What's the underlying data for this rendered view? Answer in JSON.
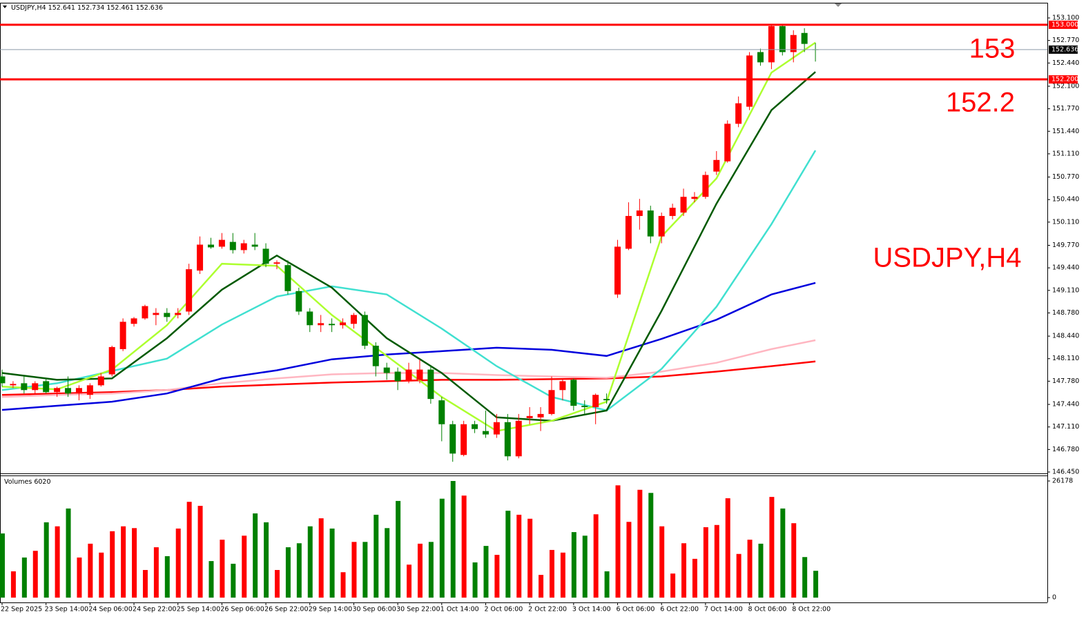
{
  "chart_data": [
    {
      "type": "candlestick",
      "title": "USDJPY,H4",
      "up_color": "#ff0000",
      "down_color": "#008000",
      "categories": [
        "22 Sep 2025",
        null,
        null,
        null,
        "23 Sep 14:00",
        null,
        null,
        null,
        "24 Sep 06:00",
        null,
        null,
        null,
        "24 Sep 22:00",
        null,
        null,
        null,
        "25 Sep 14:00",
        null,
        null,
        null,
        "26 Sep 06:00",
        null,
        null,
        null,
        "26 Sep 22:00",
        null,
        null,
        null,
        "29 Sep 14:00",
        null,
        null,
        null,
        "30 Sep 06:00",
        null,
        null,
        null,
        "30 Sep 22:00",
        null,
        null,
        null,
        "1 Oct 14:00",
        null,
        null,
        null,
        "2 Oct 06:00",
        null,
        null,
        null,
        "2 Oct 22:00",
        null,
        null,
        null,
        "3 Oct 14:00",
        null,
        null,
        null,
        "6 Oct 06:00",
        null,
        null,
        null,
        "6 Oct 22:00",
        null,
        null,
        null,
        "7 Oct 14:00",
        null,
        null,
        null,
        "8 Oct 06:00",
        null,
        null,
        null,
        "8 Oct 22:00",
        null,
        null
      ],
      "ohlc": [
        [
          147.85,
          147.95,
          147.7,
          147.75
        ],
        [
          147.72,
          147.78,
          147.68,
          147.74
        ],
        [
          147.75,
          147.85,
          147.6,
          147.65
        ],
        [
          147.65,
          147.78,
          147.6,
          147.75
        ],
        [
          147.78,
          147.82,
          147.6,
          147.62
        ],
        [
          147.62,
          147.7,
          147.55,
          147.68
        ],
        [
          147.68,
          147.85,
          147.55,
          147.6
        ],
        [
          147.6,
          147.72,
          147.5,
          147.68
        ],
        [
          147.58,
          147.75,
          147.52,
          147.72
        ],
        [
          147.72,
          147.9,
          147.7,
          147.85
        ],
        [
          147.88,
          148.3,
          147.85,
          148.28
        ],
        [
          148.25,
          148.7,
          148.22,
          148.65
        ],
        [
          148.62,
          148.72,
          148.58,
          148.7
        ],
        [
          148.7,
          148.9,
          148.68,
          148.88
        ],
        [
          148.75,
          148.85,
          148.6,
          148.78
        ],
        [
          148.78,
          148.85,
          148.65,
          148.72
        ],
        [
          148.75,
          148.85,
          148.7,
          148.78
        ],
        [
          148.8,
          149.5,
          148.75,
          149.42
        ],
        [
          149.4,
          149.9,
          149.35,
          149.78
        ],
        [
          149.78,
          149.88,
          149.72,
          149.74
        ],
        [
          149.75,
          149.95,
          149.72,
          149.85
        ],
        [
          149.82,
          149.95,
          149.65,
          149.7
        ],
        [
          149.7,
          149.85,
          149.65,
          149.8
        ],
        [
          149.78,
          149.95,
          149.7,
          149.75
        ],
        [
          149.72,
          149.8,
          149.45,
          149.5
        ],
        [
          149.5,
          149.55,
          149.42,
          149.52
        ],
        [
          149.48,
          149.55,
          149.05,
          149.1
        ],
        [
          149.1,
          149.15,
          148.75,
          148.8
        ],
        [
          148.8,
          148.85,
          148.5,
          148.6
        ],
        [
          148.6,
          148.75,
          148.5,
          148.63
        ],
        [
          148.62,
          148.7,
          148.5,
          148.6
        ],
        [
          148.6,
          148.7,
          148.55,
          148.64
        ],
        [
          148.62,
          148.78,
          148.55,
          148.75
        ],
        [
          148.75,
          148.8,
          148.25,
          148.3
        ],
        [
          148.3,
          148.35,
          147.85,
          148.0
        ],
        [
          147.98,
          148.05,
          147.8,
          147.9
        ],
        [
          147.92,
          147.98,
          147.65,
          147.78
        ],
        [
          147.78,
          148.05,
          147.75,
          147.95
        ],
        [
          147.8,
          148.1,
          147.75,
          147.95
        ],
        [
          147.95,
          148.0,
          147.45,
          147.52
        ],
        [
          147.5,
          147.55,
          146.9,
          147.15
        ],
        [
          147.15,
          147.2,
          146.6,
          146.72
        ],
        [
          146.7,
          147.2,
          146.68,
          147.15
        ],
        [
          147.15,
          147.2,
          147.02,
          147.08
        ],
        [
          147.05,
          147.35,
          146.95,
          147.0
        ],
        [
          147.0,
          147.3,
          146.95,
          147.18
        ],
        [
          147.18,
          147.3,
          146.62,
          146.68
        ],
        [
          146.68,
          147.3,
          146.65,
          147.2
        ],
        [
          147.24,
          147.4,
          147.15,
          147.27
        ],
        [
          147.25,
          147.4,
          147.05,
          147.3
        ],
        [
          147.3,
          147.85,
          147.28,
          147.65
        ],
        [
          147.65,
          147.82,
          147.5,
          147.78
        ],
        [
          147.8,
          147.82,
          147.35,
          147.42
        ],
        [
          147.42,
          147.5,
          147.3,
          147.4
        ],
        [
          147.4,
          147.6,
          147.15,
          147.58
        ],
        [
          147.52,
          147.6,
          147.45,
          147.5
        ],
        [
          149.05,
          149.85,
          149.0,
          149.75
        ],
        [
          149.72,
          150.4,
          149.7,
          150.2
        ],
        [
          150.2,
          150.45,
          150.0,
          150.28
        ],
        [
          150.28,
          150.35,
          149.8,
          149.9
        ],
        [
          149.9,
          150.25,
          149.8,
          150.2
        ],
        [
          150.2,
          150.38,
          150.15,
          150.32
        ],
        [
          150.25,
          150.6,
          150.2,
          150.48
        ],
        [
          150.45,
          150.55,
          150.4,
          150.48
        ],
        [
          150.48,
          150.85,
          150.45,
          150.8
        ],
        [
          150.85,
          151.15,
          150.8,
          151.02
        ],
        [
          151.0,
          151.6,
          150.98,
          151.55
        ],
        [
          151.55,
          151.95,
          151.5,
          151.85
        ],
        [
          151.8,
          152.6,
          151.75,
          152.55
        ],
        [
          152.6,
          152.65,
          152.4,
          152.45
        ],
        [
          152.45,
          153.0,
          152.35,
          152.98
        ],
        [
          152.98,
          153.0,
          152.55,
          152.6
        ],
        [
          152.6,
          152.92,
          152.45,
          152.85
        ],
        [
          152.88,
          152.95,
          152.6,
          152.72
        ],
        [
          152.641,
          152.734,
          152.461,
          152.636
        ]
      ],
      "overlays": [
        {
          "color": "#ff0000",
          "x": [
            0,
            5,
            10,
            15,
            20,
            25,
            30,
            35,
            40,
            45,
            50,
            55,
            60,
            65,
            70,
            74
          ],
          "values": [
            147.58,
            147.6,
            147.62,
            147.65,
            147.7,
            147.73,
            147.76,
            147.78,
            147.8,
            147.8,
            147.81,
            147.82,
            147.85,
            147.92,
            148.0,
            148.07
          ]
        },
        {
          "color": "#ffb6c1",
          "x": [
            0,
            5,
            10,
            15,
            20,
            25,
            30,
            35,
            40,
            45,
            50,
            55,
            60,
            65,
            70,
            74
          ],
          "values": [
            147.55,
            147.58,
            147.6,
            147.65,
            147.75,
            147.82,
            147.88,
            147.9,
            147.9,
            147.87,
            147.85,
            147.83,
            147.92,
            148.05,
            148.25,
            148.38
          ]
        },
        {
          "color": "#0000dd",
          "x": [
            0,
            5,
            10,
            15,
            20,
            25,
            30,
            35,
            40,
            45,
            50,
            55,
            60,
            65,
            70,
            74
          ],
          "values": [
            147.36,
            147.42,
            147.48,
            147.6,
            147.82,
            147.94,
            148.1,
            148.17,
            148.22,
            148.27,
            148.24,
            148.15,
            148.4,
            148.68,
            149.05,
            149.22
          ]
        },
        {
          "color": "#40e0d0",
          "x": [
            0,
            5,
            10,
            15,
            20,
            25,
            30,
            35,
            40,
            45,
            50,
            55,
            60,
            65,
            70,
            74
          ],
          "values": [
            147.65,
            147.75,
            147.93,
            148.11,
            148.61,
            149.02,
            149.17,
            149.05,
            148.55,
            148.0,
            147.55,
            147.35,
            147.96,
            148.87,
            150.08,
            151.16
          ]
        },
        {
          "color": "#005a00",
          "x": [
            0,
            5,
            10,
            15,
            20,
            25,
            30,
            35,
            40,
            45,
            50,
            55,
            60,
            65,
            70,
            74
          ],
          "values": [
            147.9,
            147.8,
            147.82,
            148.41,
            149.12,
            149.62,
            149.15,
            148.41,
            147.9,
            147.25,
            147.2,
            147.35,
            148.81,
            150.38,
            151.75,
            152.31
          ]
        },
        {
          "color": "#adff2f",
          "x": [
            0,
            5,
            10,
            15,
            20,
            25,
            30,
            35,
            40,
            45,
            50,
            55,
            60,
            65,
            70,
            74
          ],
          "values": [
            147.7,
            147.66,
            147.95,
            148.6,
            149.5,
            149.47,
            148.75,
            148.15,
            147.55,
            147.05,
            147.2,
            147.48,
            149.9,
            150.75,
            152.3,
            152.74
          ]
        }
      ],
      "levels": [
        {
          "value": 153,
          "label": "153.000",
          "color": "#ff0000"
        },
        {
          "value": 152.2,
          "label": "152.200",
          "color": "#ff0000"
        }
      ],
      "ylim": [
        146.45,
        153.1
      ],
      "yticks": [
        {
          "value": 153.1,
          "label": "153.100"
        },
        {
          "value": 152.77,
          "label": "152.770"
        },
        {
          "value": 152.44,
          "label": "152.440"
        },
        {
          "value": 152.1,
          "label": "152.100"
        },
        {
          "value": 151.77,
          "label": "151.770"
        },
        {
          "value": 151.44,
          "label": "151.440"
        },
        {
          "value": 151.11,
          "label": "151.110"
        },
        {
          "value": 150.77,
          "label": "150.770"
        },
        {
          "value": 150.44,
          "label": "150.440"
        },
        {
          "value": 150.11,
          "label": "150.110"
        },
        {
          "value": 149.77,
          "label": "149.770"
        },
        {
          "value": 149.44,
          "label": "149.440"
        },
        {
          "value": 149.11,
          "label": "149.110"
        },
        {
          "value": 148.78,
          "label": "148.780"
        },
        {
          "value": 148.44,
          "label": "148.440"
        },
        {
          "value": 148.11,
          "label": "148.110"
        },
        {
          "value": 147.78,
          "label": "147.780"
        },
        {
          "value": 147.44,
          "label": "147.440"
        },
        {
          "value": 147.11,
          "label": "147.110"
        },
        {
          "value": 146.78,
          "label": "146.780"
        },
        {
          "value": 146.45,
          "label": "146.450"
        }
      ]
    },
    {
      "type": "bar",
      "title": "Volumes",
      "values": [
        14400,
        5900,
        9000,
        10500,
        16900,
        16000,
        20000,
        9000,
        12100,
        10100,
        14900,
        16000,
        15600,
        6200,
        11300,
        9300,
        15500,
        21500,
        20600,
        8200,
        13000,
        7600,
        13900,
        18900,
        16900,
        6200,
        11300,
        12200,
        16000,
        17800,
        15500,
        5700,
        12500,
        12500,
        18600,
        15600,
        21700,
        7400,
        12100,
        12500,
        22200,
        26178,
        22900,
        7900,
        11600,
        9600,
        19500,
        18600,
        17700,
        5100,
        10700,
        10100,
        14700,
        13900,
        18700,
        5900,
        25200,
        17000,
        24200,
        23500,
        16000,
        5400,
        12200,
        8700,
        15800,
        16300,
        22300,
        9800,
        13000,
        12100,
        22600,
        20000,
        16700,
        9100,
        6020
      ],
      "ylim": [
        0,
        26178
      ],
      "yticks": [
        0,
        26178
      ]
    }
  ]
}
